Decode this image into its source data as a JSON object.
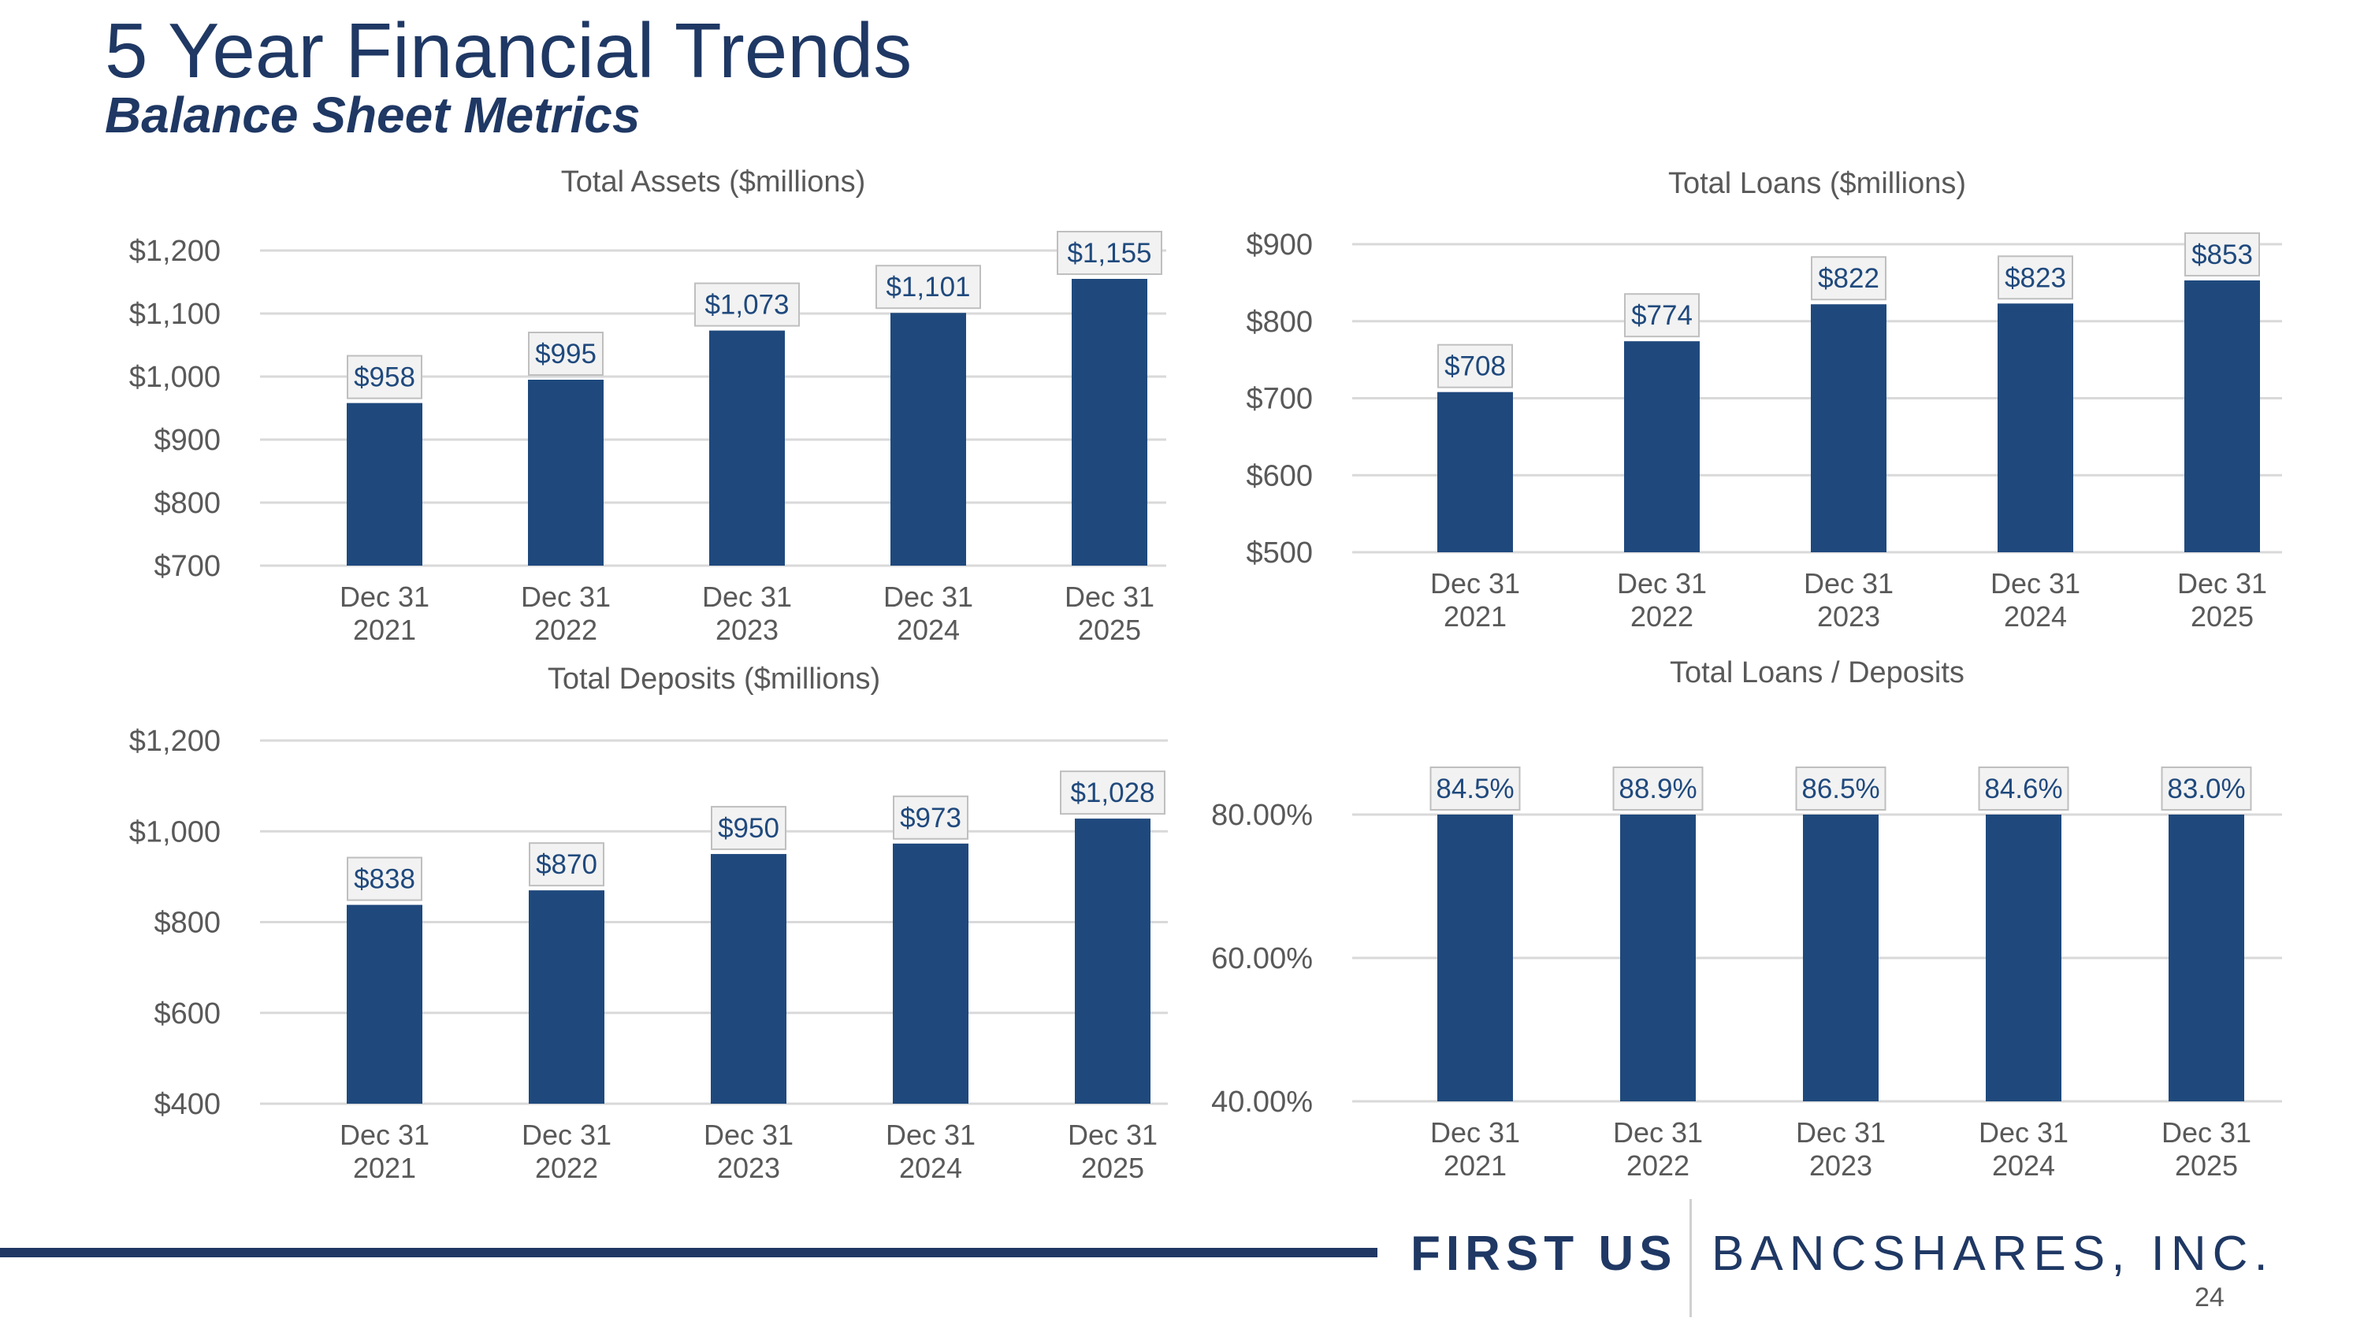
{
  "slide": {
    "title": "5 Year Financial Trends",
    "subtitle": "Balance Sheet Metrics",
    "page_number": "24",
    "brand": {
      "first": "FIRST US",
      "rest": "BANCSHARES, INC."
    }
  },
  "colors": {
    "bar": "#1f497d",
    "title": "#1f3864",
    "axis_text": "#595959",
    "label_text": "#1f497d",
    "label_bg": "#f2f2f2",
    "gridline": "#d9d9d9"
  },
  "chart_data": [
    {
      "id": "total-assets",
      "type": "bar",
      "title": "Total Assets ($millions)",
      "categories": [
        [
          "Dec 31",
          "2021"
        ],
        [
          "Dec 31",
          "2022"
        ],
        [
          "Dec 31",
          "2023"
        ],
        [
          "Dec 31",
          "2024"
        ],
        [
          "Dec 31",
          "2025"
        ]
      ],
      "values": [
        958,
        995,
        1073,
        1101,
        1155
      ],
      "data_labels": [
        "$958",
        "$995",
        "$1,073",
        "$1,101",
        "$1,155"
      ],
      "ylim": [
        700,
        1200
      ],
      "yticks": [
        700,
        800,
        900,
        1000,
        1100,
        1200
      ],
      "ytick_labels": [
        "$700",
        "$800",
        "$900",
        "$1,000",
        "$1,100",
        "$1,200"
      ],
      "grid": true
    },
    {
      "id": "total-loans",
      "type": "bar",
      "title": "Total Loans ($millions)",
      "categories": [
        [
          "Dec 31",
          "2021"
        ],
        [
          "Dec 31",
          "2022"
        ],
        [
          "Dec 31",
          "2023"
        ],
        [
          "Dec 31",
          "2024"
        ],
        [
          "Dec 31",
          "2025"
        ]
      ],
      "values": [
        708,
        774,
        822,
        823,
        853
      ],
      "data_labels": [
        "$708",
        "$774",
        "$822",
        "$823",
        "$853"
      ],
      "ylim": [
        500,
        900
      ],
      "yticks": [
        500,
        600,
        700,
        800,
        900
      ],
      "ytick_labels": [
        "$500",
        "$600",
        "$700",
        "$800",
        "$900"
      ],
      "grid": true
    },
    {
      "id": "total-deposits",
      "type": "bar",
      "title": "Total Deposits ($millions)",
      "categories": [
        [
          "Dec 31",
          "2021"
        ],
        [
          "Dec 31",
          "2022"
        ],
        [
          "Dec 31",
          "2023"
        ],
        [
          "Dec 31",
          "2024"
        ],
        [
          "Dec 31",
          "2025"
        ]
      ],
      "values": [
        838,
        870,
        950,
        973,
        1028
      ],
      "data_labels": [
        "$838",
        "$870",
        "$950",
        "$973",
        "$1,028"
      ],
      "ylim": [
        400,
        1200
      ],
      "yticks": [
        400,
        600,
        800,
        1000,
        1200
      ],
      "ytick_labels": [
        "$400",
        "$600",
        "$800",
        "$1,000",
        "$1,200"
      ],
      "grid": true
    },
    {
      "id": "loans-to-deposits",
      "type": "bar",
      "title": "Total Loans / Deposits",
      "categories": [
        [
          "Dec 31",
          "2021"
        ],
        [
          "Dec 31",
          "2022"
        ],
        [
          "Dec 31",
          "2023"
        ],
        [
          "Dec 31",
          "2024"
        ],
        [
          "Dec 31",
          "2025"
        ]
      ],
      "values": [
        84.5,
        88.9,
        86.5,
        84.6,
        83.0
      ],
      "data_labels": [
        "84.5%",
        "88.9%",
        "86.5%",
        "84.6%",
        "83.0%"
      ],
      "ylim": [
        40,
        80
      ],
      "yticks": [
        40,
        60,
        80
      ],
      "ytick_labels": [
        "40.00%",
        "60.00%",
        "80.00%"
      ],
      "grid": true
    }
  ]
}
